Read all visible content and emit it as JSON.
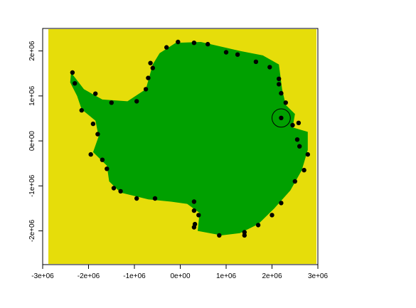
{
  "colors": {
    "background": "#e6dd0a",
    "land": "#00a000",
    "points": "#000000",
    "frame": "#000000",
    "page": "#ffffff"
  },
  "map": {
    "x_range": [
      -3000000,
      3000000
    ],
    "y_range": [
      -2750000,
      2500000
    ],
    "x_ticks": [
      {
        "value": -3000000,
        "label": "-3e+06"
      },
      {
        "value": -2000000,
        "label": "-2e+06"
      },
      {
        "value": -1000000,
        "label": "-1e+06"
      },
      {
        "value": 0,
        "label": "0e+00"
      },
      {
        "value": 1000000,
        "label": "1e+06"
      },
      {
        "value": 2000000,
        "label": "2e+06"
      },
      {
        "value": 3000000,
        "label": "3e+06"
      }
    ],
    "y_ticks": [
      {
        "value": 2000000,
        "label": "2e+06"
      },
      {
        "value": 1000000,
        "label": "1e+06"
      },
      {
        "value": 0,
        "label": "0e+00"
      },
      {
        "value": -1000000,
        "label": "-1e+06"
      },
      {
        "value": -2000000,
        "label": "-2e+06"
      }
    ],
    "highlight": {
      "x": 2200000,
      "y": 510000,
      "radius": 200000
    },
    "coastline": [
      [
        -2380000,
        1520000
      ],
      [
        -2100000,
        1150000
      ],
      [
        -1700000,
        920000
      ],
      [
        -1150000,
        880000
      ],
      [
        -750000,
        1150000
      ],
      [
        -600000,
        1700000
      ],
      [
        -450000,
        1950000
      ],
      [
        -100000,
        2180000
      ],
      [
        450000,
        2200000
      ],
      [
        1300000,
        2000000
      ],
      [
        1800000,
        1900000
      ],
      [
        2150000,
        1700000
      ],
      [
        2220000,
        1150000
      ],
      [
        2300000,
        800000
      ],
      [
        2500000,
        600000
      ],
      [
        2450000,
        300000
      ],
      [
        2780000,
        200000
      ],
      [
        2780000,
        -200000
      ],
      [
        2650000,
        -650000
      ],
      [
        2400000,
        -1100000
      ],
      [
        2050000,
        -1500000
      ],
      [
        1700000,
        -1850000
      ],
      [
        1300000,
        -2050000
      ],
      [
        900000,
        -2100000
      ],
      [
        380000,
        -2000000
      ],
      [
        420000,
        -1600000
      ],
      [
        150000,
        -1400000
      ],
      [
        -200000,
        -1350000
      ],
      [
        -700000,
        -1300000
      ],
      [
        -1300000,
        -1150000
      ],
      [
        -1550000,
        -900000
      ],
      [
        -1600000,
        -550000
      ],
      [
        -1900000,
        -250000
      ],
      [
        -1780000,
        100000
      ],
      [
        -1850000,
        450000
      ],
      [
        -2150000,
        700000
      ],
      [
        -2250000,
        1000000
      ],
      [
        -2400000,
        1300000
      ]
    ],
    "coast_points": [
      [
        -2350000,
        1520000
      ],
      [
        -2300000,
        1280000
      ],
      [
        -1850000,
        1050000
      ],
      [
        -1500000,
        850000
      ],
      [
        -2150000,
        680000
      ],
      [
        -1900000,
        380000
      ],
      [
        -1800000,
        150000
      ],
      [
        -1950000,
        -300000
      ],
      [
        -1700000,
        -420000
      ],
      [
        -1600000,
        -620000
      ],
      [
        -1450000,
        -1050000
      ],
      [
        -1300000,
        -1120000
      ],
      [
        -950000,
        -1280000
      ],
      [
        -550000,
        -1280000
      ],
      [
        -950000,
        880000
      ],
      [
        -750000,
        1150000
      ],
      [
        -700000,
        1400000
      ],
      [
        -600000,
        1620000
      ],
      [
        -650000,
        1730000
      ],
      [
        -300000,
        2080000
      ],
      [
        -50000,
        2200000
      ],
      [
        300000,
        2180000
      ],
      [
        600000,
        2150000
      ],
      [
        1000000,
        1970000
      ],
      [
        1250000,
        1920000
      ],
      [
        1650000,
        1760000
      ],
      [
        1950000,
        1640000
      ],
      [
        2150000,
        1380000
      ],
      [
        2150000,
        1260000
      ],
      [
        2200000,
        1060000
      ],
      [
        2300000,
        850000
      ],
      [
        2200000,
        510000
      ],
      [
        2450000,
        350000
      ],
      [
        2580000,
        400000
      ],
      [
        2550000,
        30000
      ],
      [
        2600000,
        -120000
      ],
      [
        2780000,
        -300000
      ],
      [
        2700000,
        -650000
      ],
      [
        2500000,
        -900000
      ],
      [
        2200000,
        -1380000
      ],
      [
        2000000,
        -1650000
      ],
      [
        1700000,
        -1870000
      ],
      [
        1400000,
        -2030000
      ],
      [
        1400000,
        -2100000
      ],
      [
        850000,
        -2100000
      ],
      [
        400000,
        -1650000
      ],
      [
        300000,
        -1350000
      ],
      [
        300000,
        -1550000
      ],
      [
        320000,
        -1850000
      ],
      [
        300000,
        -1920000
      ]
    ]
  }
}
